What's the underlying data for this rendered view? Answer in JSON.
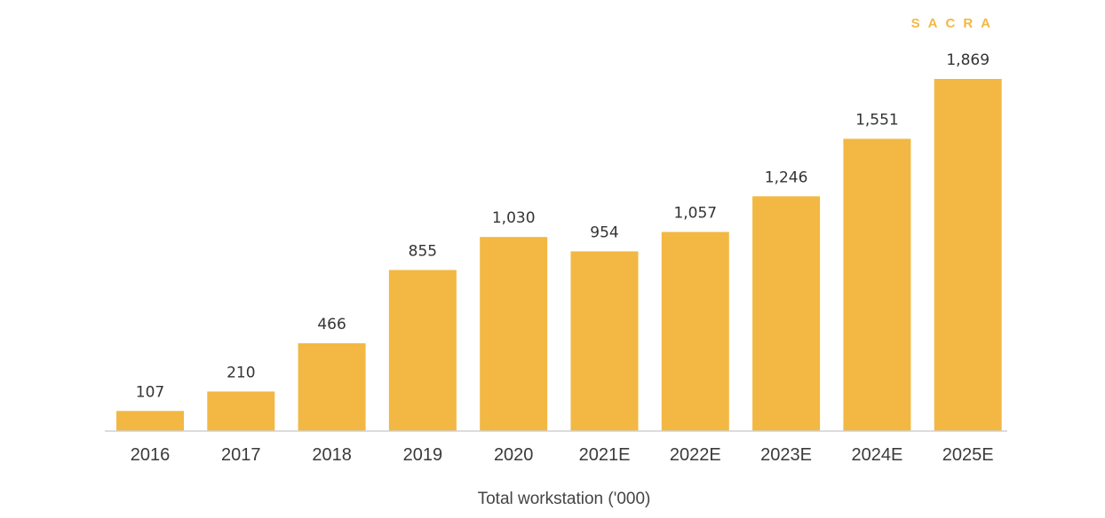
{
  "brand": {
    "name": "SACRA",
    "color": "#f2b843"
  },
  "chart_data": {
    "type": "bar",
    "categories": [
      "2016",
      "2017",
      "2018",
      "2019",
      "2020",
      "2021E",
      "2022E",
      "2023E",
      "2024E",
      "2025E"
    ],
    "values": [
      107,
      210,
      466,
      855,
      1030,
      954,
      1057,
      1246,
      1551,
      1869
    ],
    "value_labels": [
      "107",
      "210",
      "466",
      "855",
      "1,030",
      "954",
      "1,057",
      "1,246",
      "1,551",
      "1,869"
    ],
    "title": "",
    "xlabel": "Total workstation ('000)",
    "ylabel": "",
    "ylim": [
      0,
      1869
    ],
    "grid": false,
    "legend": "none",
    "bar_color": "#f2b843"
  }
}
